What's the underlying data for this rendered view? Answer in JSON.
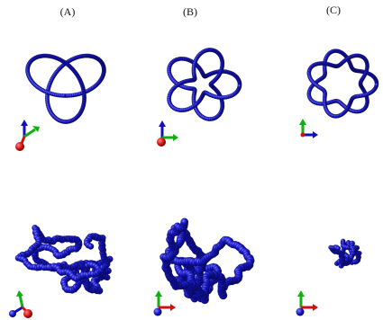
{
  "figure": {
    "panels": [
      {
        "label": "(A)",
        "top_knot": "trefoil",
        "bottom_state": "collapsed-globule",
        "axes": "xyz-triad"
      },
      {
        "label": "(B)",
        "top_knot": "five-crossing-star",
        "bottom_state": "collapsed-globule",
        "axes": "xyz-triad"
      },
      {
        "label": "(C)",
        "top_knot": "seven-lobed-torus",
        "bottom_state": "compact-globule",
        "axes": "xyz-triad"
      }
    ]
  },
  "colors": {
    "bead": "#1a1ad6",
    "bead_dark": "#0a0a7a",
    "axis_x": "#d01010",
    "axis_y": "#10b010",
    "axis_z": "#1010c0"
  }
}
